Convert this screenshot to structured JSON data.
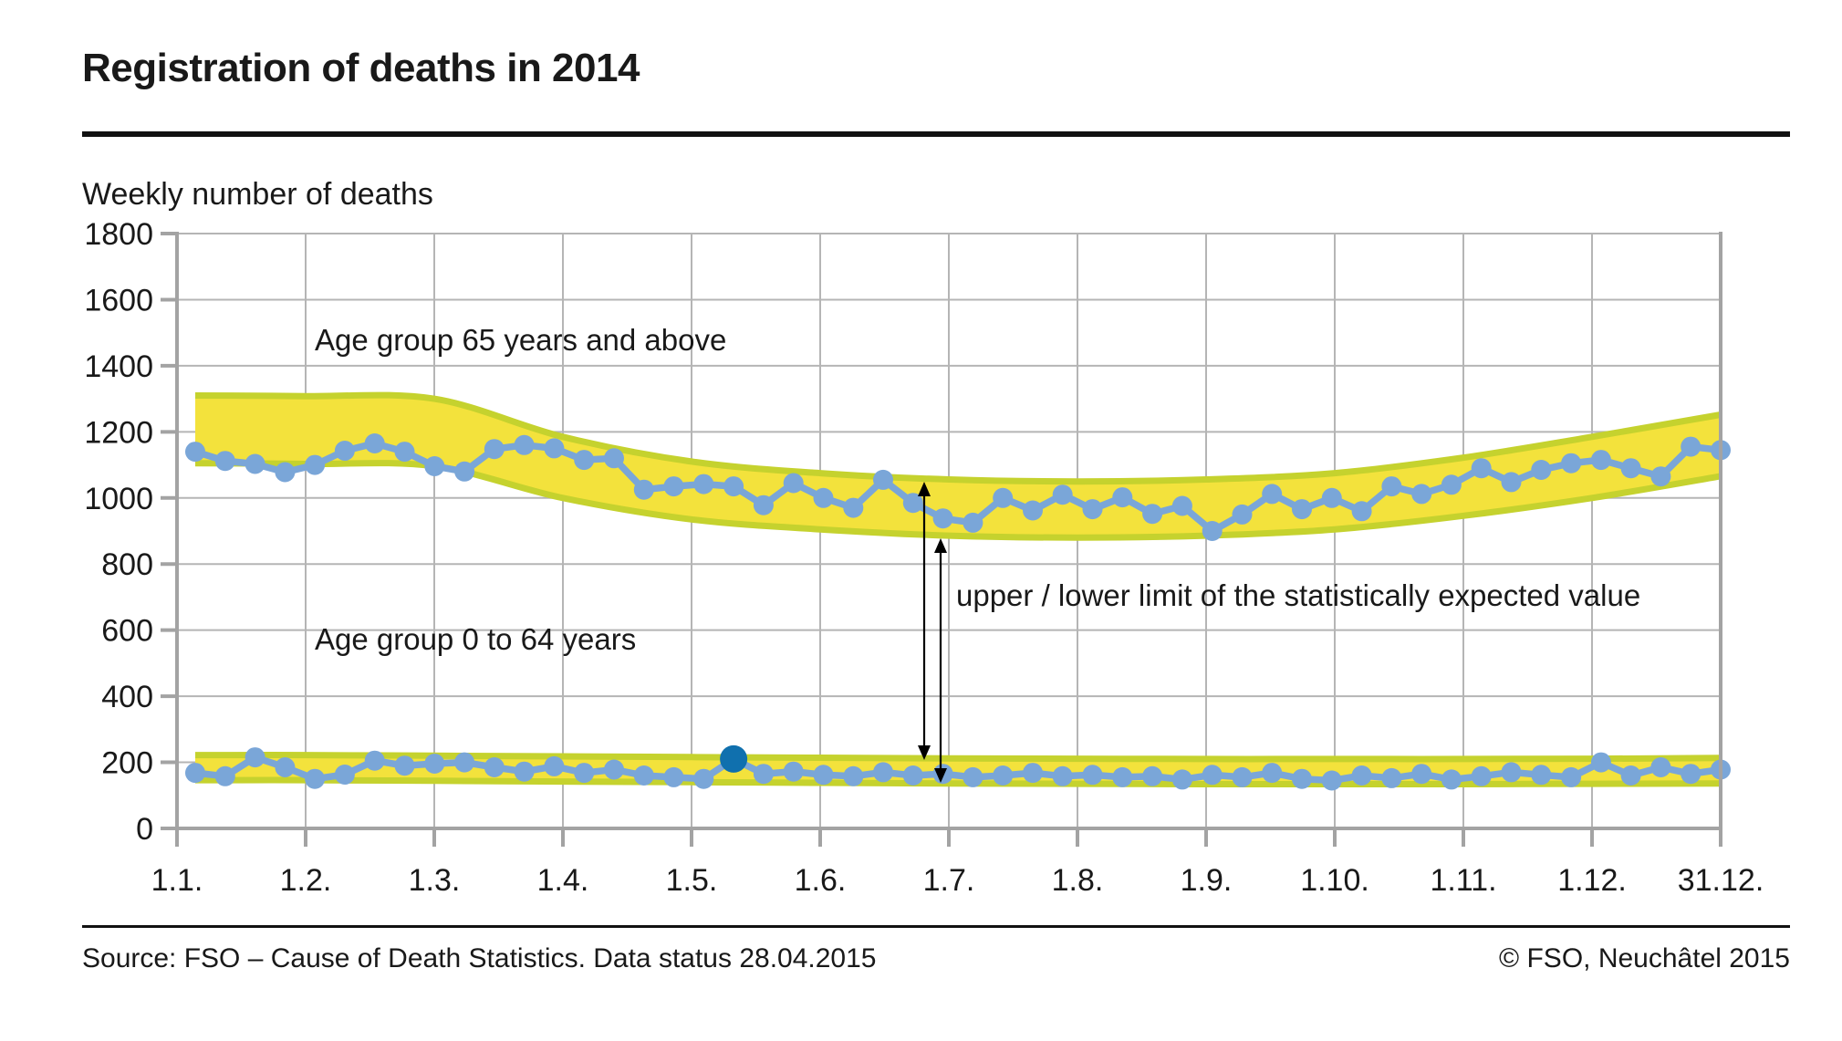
{
  "page": {
    "title": "Registration of deaths in 2014",
    "caption": "Weekly number of deaths",
    "source": "Source: FSO – Cause of Death Statistics. Data status 28.04.2015",
    "copyright": "© FSO, Neuchâtel 2015"
  },
  "colors": {
    "band_fill": "#f3e23c",
    "band_edge": "#c5d22e",
    "series_blue": "#7aa6d8",
    "highlight_blue": "#1070ae",
    "grid": "#b5b5b5",
    "spine": "#a3a3a3",
    "text": "#191919",
    "arrow": "#000000"
  },
  "chart_data": {
    "type": "line",
    "title": "Registration of deaths in 2014",
    "ylabel": "Weekly number of deaths",
    "ylim": [
      0,
      1800
    ],
    "ytick_interval": 200,
    "ytick_labels": [
      "0",
      "200",
      "400",
      "600",
      "800",
      "1000",
      "1200",
      "1400",
      "1600",
      "1800"
    ],
    "xtick_labels": [
      "1.1.",
      "1.2.",
      "1.3.",
      "1.4.",
      "1.5.",
      "1.6.",
      "1.7.",
      "1.8.",
      "1.9.",
      "1.10.",
      "1.11.",
      "1.12.",
      "31.12."
    ],
    "grid": true,
    "legend_position": "none",
    "series": [
      {
        "name": "Age group 65 years and above",
        "values": [
          1140,
          1112,
          1103,
          1078,
          1100,
          1143,
          1165,
          1140,
          1096,
          1080,
          1148,
          1160,
          1150,
          1115,
          1120,
          1025,
          1035,
          1042,
          1035,
          978,
          1045,
          1000,
          970,
          1055,
          985,
          938,
          925,
          1000,
          962,
          1010,
          966,
          1002,
          952,
          976,
          900,
          950,
          1012,
          966,
          1000,
          960,
          1035,
          1012,
          1040,
          1090,
          1048,
          1085,
          1105,
          1115,
          1090,
          1065,
          1155,
          1145
        ]
      },
      {
        "name": "Age group 0 to 64 years",
        "values": [
          168,
          158,
          215,
          185,
          150,
          163,
          205,
          190,
          196,
          200,
          185,
          172,
          188,
          168,
          178,
          160,
          155,
          150,
          210,
          165,
          172,
          162,
          158,
          170,
          160,
          165,
          155,
          160,
          168,
          158,
          162,
          155,
          158,
          148,
          162,
          155,
          168,
          150,
          145,
          160,
          152,
          165,
          148,
          158,
          170,
          162,
          155,
          200,
          160,
          185,
          165,
          178
        ],
        "highlight_index": 18,
        "highlight_value": 210
      }
    ],
    "bands": [
      {
        "series": "Age group 65 years and above",
        "meaning": "upper / lower limit of the statistically expected value",
        "upper": [
          1310,
          1308,
          1300,
          1185,
          1110,
          1075,
          1056,
          1050,
          1056,
          1075,
          1122,
          1185,
          1252
        ],
        "lower": [
          1105,
          1103,
          1096,
          1000,
          935,
          905,
          886,
          880,
          886,
          905,
          946,
          1000,
          1066
        ]
      },
      {
        "series": "Age group 0 to 64 years",
        "meaning": "upper / lower limit of the statistically expected value",
        "upper": [
          222,
          222,
          220,
          218,
          216,
          214,
          212,
          211,
          210,
          210,
          210,
          211,
          213
        ],
        "lower": [
          146,
          146,
          144,
          142,
          140,
          138,
          136,
          135,
          134,
          134,
          134,
          135,
          136
        ]
      }
    ],
    "annotations": [
      {
        "id": "label-65",
        "text": "Age group 65 years and above"
      },
      {
        "id": "label-064",
        "text": "Age group 0 to 64 years"
      },
      {
        "id": "limits",
        "text": "upper / lower limit of the statistically expected value"
      }
    ]
  }
}
